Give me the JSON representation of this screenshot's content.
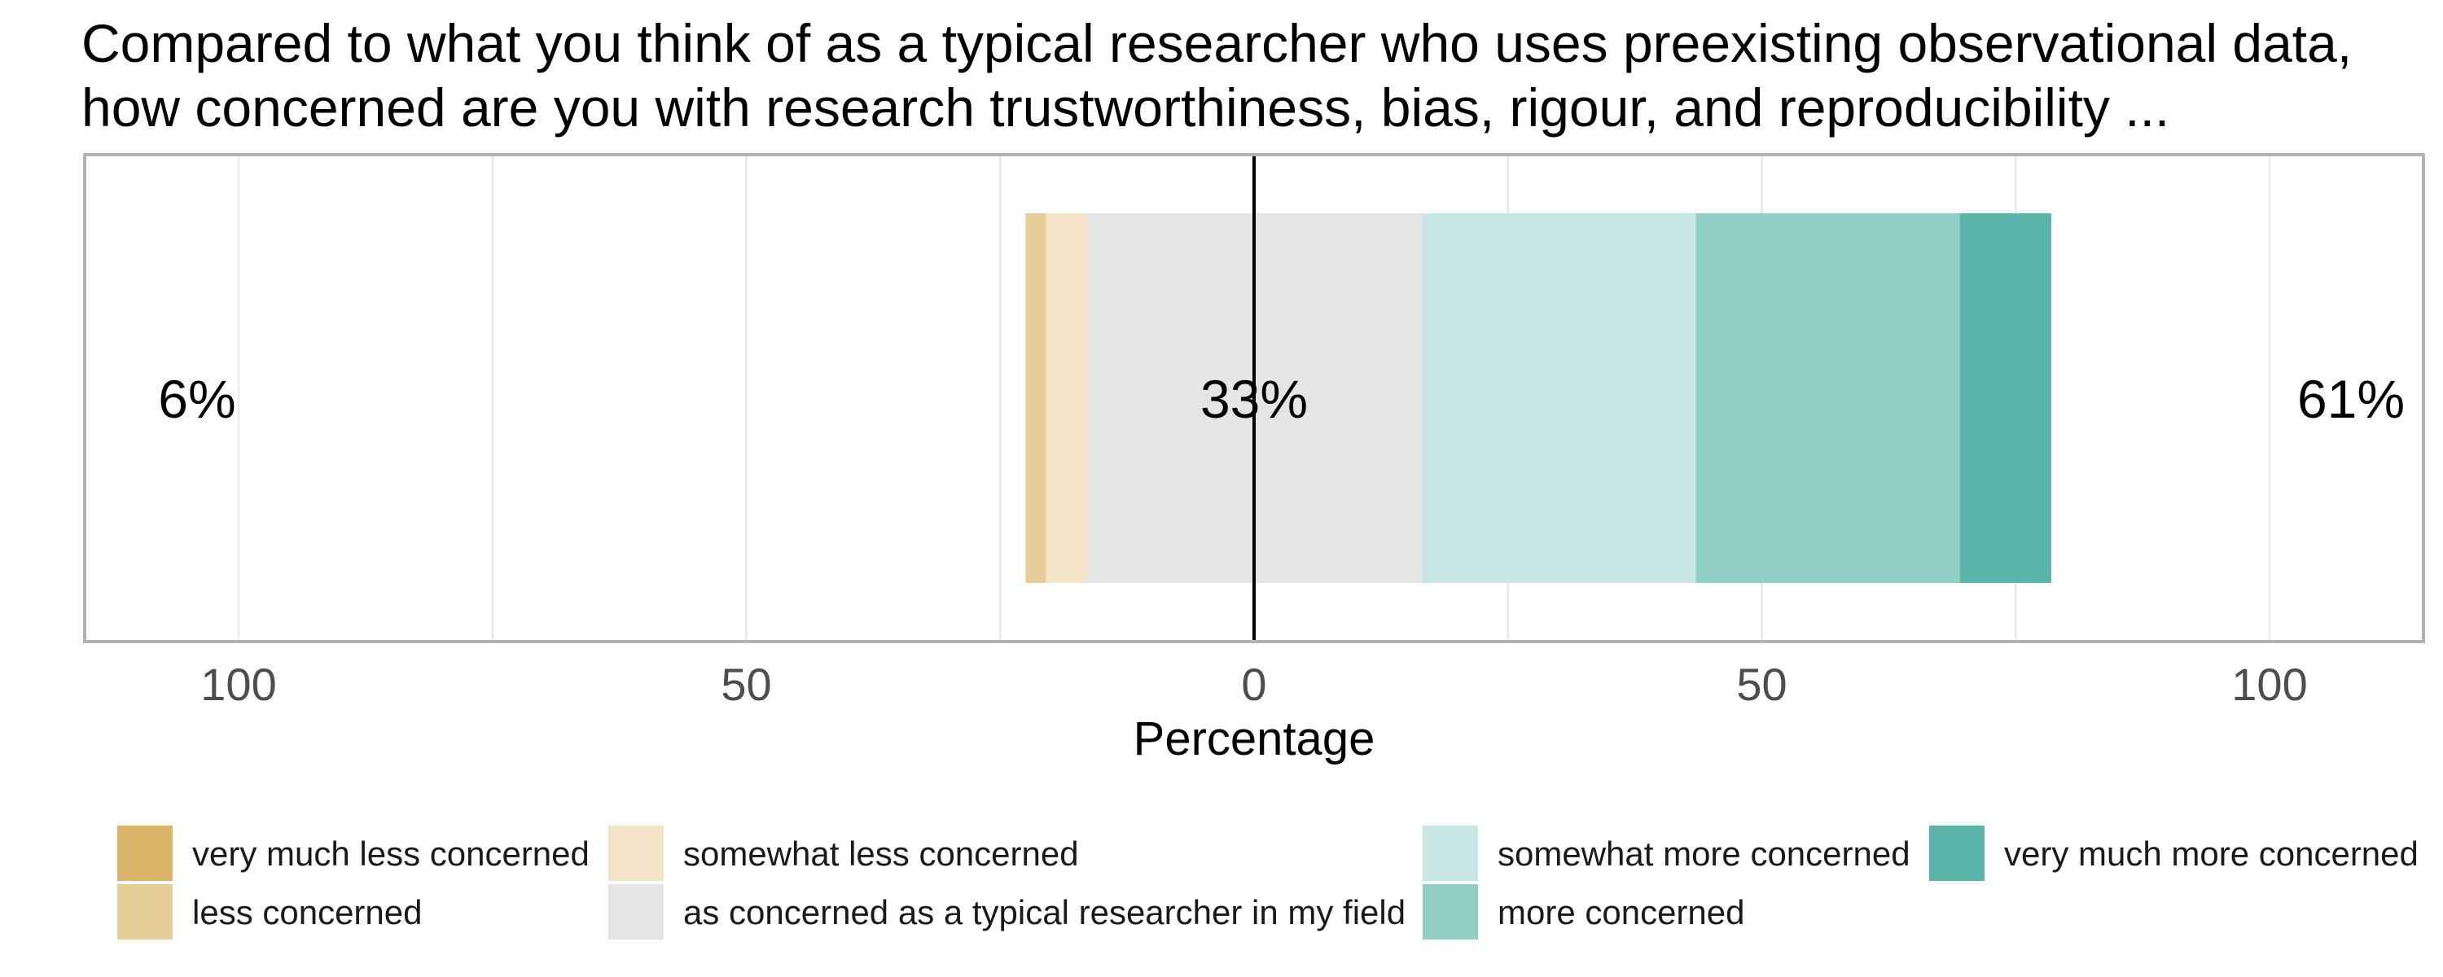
{
  "chart_data": {
    "type": "bar",
    "orientation": "horizontal",
    "stacked": "diverging",
    "title": "Compared to what you think of as a typical researcher who uses preexisting observational data, how concerned are you with research trustworthiness, bias, rigour, and reproducibility ...",
    "title_lines": [
      "Compared to what you think of as a typical researcher who uses preexisting observational data,",
      "how concerned are you with research trustworthiness, bias, rigour, and reproducibility ..."
    ],
    "xlabel": "Percentage",
    "ylabel": "",
    "xlim": [
      -100,
      100
    ],
    "xticks": [
      -100,
      -50,
      0,
      50,
      100
    ],
    "xtick_labels": [
      "100",
      "50",
      "0",
      "50",
      "100"
    ],
    "grid": true,
    "legend_position": "bottom",
    "legend_layout": "4 columns x 2 rows",
    "center_line": 0,
    "categories": [
      ""
    ],
    "series": [
      {
        "name": "very much less concerned",
        "color": "#d9b469",
        "values": [
          0
        ]
      },
      {
        "name": "less concerned",
        "color": "#e7cd98",
        "values": [
          2
        ]
      },
      {
        "name": "somewhat less concerned",
        "color": "#f3e4c8",
        "values": [
          4
        ]
      },
      {
        "name": "as concerned as a typical researcher in my field",
        "color": "#e5e5e5",
        "values": [
          33
        ]
      },
      {
        "name": "somewhat more concerned",
        "color": "#c8e7e4",
        "values": [
          27
        ]
      },
      {
        "name": "more concerned",
        "color": "#91cec6",
        "values": [
          26
        ]
      },
      {
        "name": "very much more concerned",
        "color": "#5ab4a9",
        "values": [
          9
        ]
      }
    ],
    "neutral_category": "as concerned as a typical researcher in my field",
    "annotations": {
      "left_total": "6%",
      "neutral_total": "33%",
      "right_total": "61%"
    }
  }
}
